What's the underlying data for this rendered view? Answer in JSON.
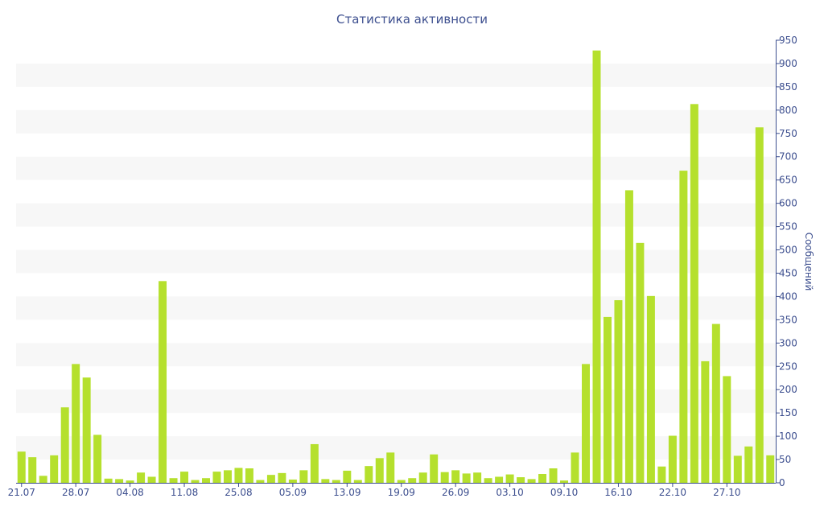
{
  "colors": {
    "bar": "#b5e02d",
    "band": "#f7f7f7",
    "text": "#3d4f8f",
    "axis": "#3d4f8f"
  },
  "chart_data": {
    "type": "bar",
    "title": "Статистика активности",
    "ylabel": "Сообщений",
    "ylim": [
      0,
      950
    ],
    "yticks": [
      0,
      50,
      100,
      150,
      200,
      250,
      300,
      350,
      400,
      450,
      500,
      550,
      600,
      650,
      700,
      750,
      800,
      850,
      900,
      950
    ],
    "xtick_labels": [
      {
        "label": "21.07",
        "index": 0
      },
      {
        "label": "28.07",
        "index": 5
      },
      {
        "label": "04.08",
        "index": 10
      },
      {
        "label": "11.08",
        "index": 15
      },
      {
        "label": "25.08",
        "index": 20
      },
      {
        "label": "05.09",
        "index": 25
      },
      {
        "label": "13.09",
        "index": 30
      },
      {
        "label": "19.09",
        "index": 35
      },
      {
        "label": "26.09",
        "index": 40
      },
      {
        "label": "03.10",
        "index": 45
      },
      {
        "label": "09.10",
        "index": 50
      },
      {
        "label": "16.10",
        "index": 55
      },
      {
        "label": "22.10",
        "index": 60
      },
      {
        "label": "27.10",
        "index": 65
      }
    ],
    "values": [
      67,
      55,
      15,
      59,
      162,
      255,
      226,
      103,
      9,
      8,
      5,
      22,
      13,
      433,
      10,
      24,
      6,
      10,
      24,
      27,
      32,
      31,
      6,
      17,
      21,
      7,
      27,
      83,
      8,
      6,
      26,
      6,
      36,
      53,
      65,
      6,
      10,
      22,
      61,
      23,
      27,
      20,
      22,
      10,
      13,
      18,
      12,
      8,
      19,
      31,
      5,
      65,
      255,
      928,
      356,
      392,
      628,
      515,
      401,
      35,
      101,
      670,
      813,
      261,
      341,
      229,
      58,
      78,
      763,
      59
    ]
  }
}
